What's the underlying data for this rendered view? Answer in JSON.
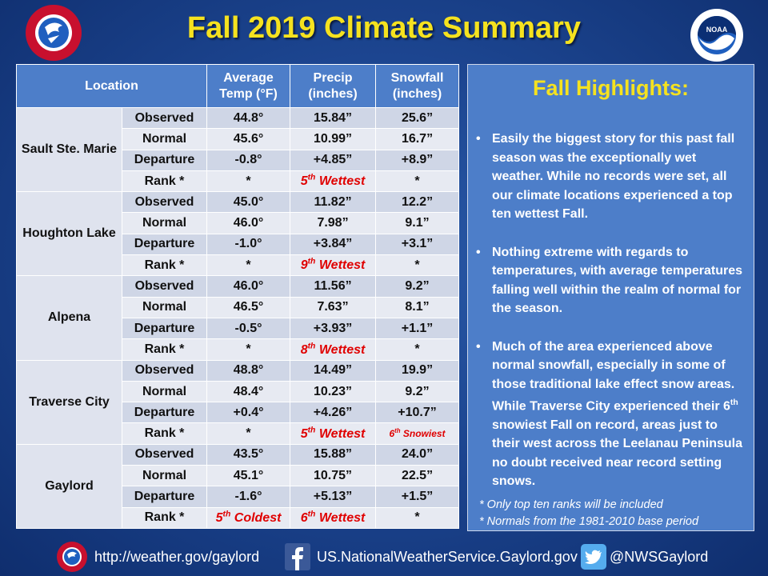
{
  "title": "Fall 2019 Climate Summary",
  "table": {
    "headers": {
      "location": "Location",
      "avg_temp": "Average Temp (°F)",
      "precip": "Precip (inches)",
      "snowfall": "Snowfall (inches)"
    },
    "row_labels": [
      "Observed",
      "Normal",
      "Departure",
      "Rank *"
    ],
    "locations": [
      {
        "name": "Sault Ste. Marie",
        "rows": [
          {
            "temp": "44.8°",
            "precip": "15.84”",
            "snow": "25.6”"
          },
          {
            "temp": "45.6°",
            "precip": "10.99”",
            "snow": "16.7”"
          },
          {
            "temp": "-0.8°",
            "precip": "+4.85”",
            "snow": "+8.9”"
          },
          {
            "temp": "*",
            "precip": "5th Wettest",
            "snow": "*"
          }
        ]
      },
      {
        "name": "Houghton Lake",
        "rows": [
          {
            "temp": "45.0°",
            "precip": "11.82”",
            "snow": "12.2”"
          },
          {
            "temp": "46.0°",
            "precip": "7.98”",
            "snow": "9.1”"
          },
          {
            "temp": "-1.0°",
            "precip": "+3.84”",
            "snow": "+3.1”"
          },
          {
            "temp": "*",
            "precip": "9th Wettest",
            "snow": "*"
          }
        ]
      },
      {
        "name": "Alpena",
        "rows": [
          {
            "temp": "46.0°",
            "precip": "11.56”",
            "snow": "9.2”"
          },
          {
            "temp": "46.5°",
            "precip": "7.63”",
            "snow": "8.1”"
          },
          {
            "temp": "-0.5°",
            "precip": "+3.93”",
            "snow": "+1.1”"
          },
          {
            "temp": "*",
            "precip": "8th Wettest",
            "snow": "*"
          }
        ]
      },
      {
        "name": "Traverse City",
        "rows": [
          {
            "temp": "48.8°",
            "precip": "14.49”",
            "snow": "19.9”"
          },
          {
            "temp": "48.4°",
            "precip": "10.23”",
            "snow": "9.2”"
          },
          {
            "temp": "+0.4°",
            "precip": "+4.26”",
            "snow": "+10.7”"
          },
          {
            "temp": "*",
            "precip": "5th Wettest",
            "snow": "6th Snowiest"
          }
        ]
      },
      {
        "name": "Gaylord",
        "rows": [
          {
            "temp": "43.5°",
            "precip": "15.88”",
            "snow": "24.0”"
          },
          {
            "temp": "45.1°",
            "precip": "10.75”",
            "snow": "22.5”"
          },
          {
            "temp": "-1.6°",
            "precip": "+5.13”",
            "snow": "+1.5”"
          },
          {
            "temp": "5th Coldest",
            "precip": "6th Wettest",
            "snow": "*"
          }
        ]
      }
    ]
  },
  "highlights": {
    "title": "Fall Highlights:",
    "bullets": [
      "Easily the biggest story for this past fall season was the exceptionally wet weather.  While no records were set, all our climate locations experienced a top ten wettest Fall.",
      "Nothing extreme with regards to temperatures, with average temperatures falling well within the realm of normal for the season.",
      "Much of the area experienced above normal snowfall, especially in some of those traditional lake effect snow areas.  While Traverse City experienced their 6th snowiest Fall on record, areas just to their west across the Leelanau Peninsula no doubt received near record setting snows."
    ],
    "notes": [
      "*  Only top ten ranks will be included",
      "*  Normals from the 1981-2010 base period"
    ]
  },
  "footer": {
    "website": "http://weather.gov/gaylord",
    "facebook": "US.NationalWeatherService.Gaylord.gov",
    "twitter": "@NWSGaylord"
  },
  "logos": {
    "nws_text": "NATIONAL WEATHER SERVICE",
    "noaa_text": "NOAA"
  },
  "colors": {
    "title": "#f5e21f",
    "header_bg": "#4d7ec9",
    "rank_red": "#e00000",
    "cell_bg": "#cfd6e6"
  }
}
